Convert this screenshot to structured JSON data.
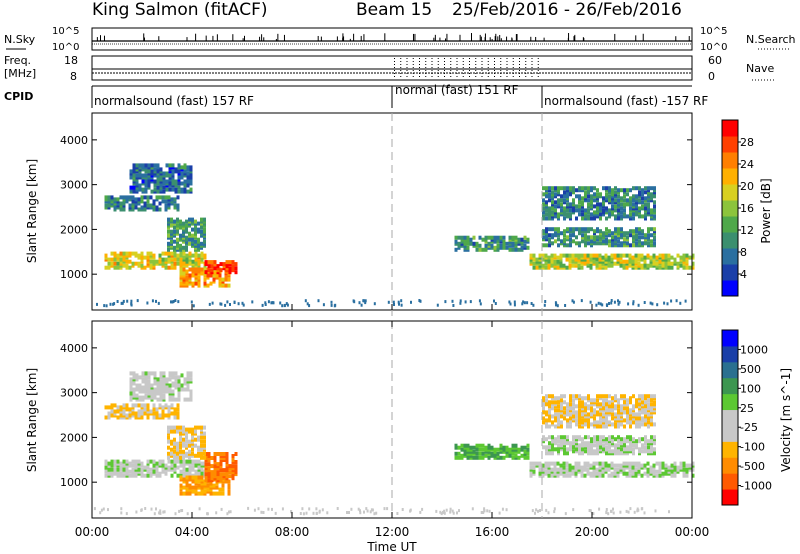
{
  "header": {
    "station": "King Salmon (fitACF)",
    "beam": "Beam 15",
    "dates": "25/Feb/2016 - 26/Feb/2016"
  },
  "strip_labels": {
    "nsky": "N.Sky",
    "nsky_scale_top": "10^5",
    "nsky_scale_bottom": "10^0",
    "freq": "Freq.",
    "freq_unit": "[MHz]",
    "freq_top": "18",
    "freq_bottom": "8",
    "cpid": "CPID",
    "nsearch": "N.Search",
    "nsearch_scale_top": "10^5",
    "nsearch_scale_bottom": "10^0",
    "nave": "Nave",
    "nave_top": "60",
    "nave_bottom": "0"
  },
  "cpid_segments": [
    {
      "label": "normalsound (fast) 157 RF",
      "start_hour": 0
    },
    {
      "label": "normal (fast) 151 RF",
      "start_hour": 12
    },
    {
      "label": "normalsound (fast) -157 RF",
      "start_hour": 18
    }
  ],
  "axes": {
    "ylabel": "Slant Range [km]",
    "xlabel": "Time UT",
    "y_ticks": [
      "1000",
      "2000",
      "3000",
      "4000"
    ],
    "x_ticks": [
      "00:00",
      "04:00",
      "08:00",
      "12:00",
      "16:00",
      "20:00",
      "00:00"
    ]
  },
  "colors": {
    "power": [
      "#0000ff",
      "#1a3fa8",
      "#2a6fa0",
      "#3b8f6f",
      "#4fa84a",
      "#8cc43c",
      "#d8d020",
      "#ffb000",
      "#ff7f00",
      "#ff4000",
      "#ff0000"
    ],
    "velocity": [
      "#ff0000",
      "#ff5a00",
      "#ff8c00",
      "#ffb400",
      "#c8c8c8",
      "#c8c8c8",
      "#5cc832",
      "#3c9650",
      "#2a7090",
      "#1a3fa8",
      "#0000ff"
    ]
  },
  "chart_data": [
    {
      "type": "heatmap",
      "panel": "power",
      "ylabel": "Slant Range [km]",
      "colorbar_label": "Power [dB]",
      "colorbar_ticks": [
        "4",
        "8",
        "12",
        "16",
        "20",
        "24",
        "28"
      ],
      "colorbar_range": [
        0,
        30
      ],
      "x_range_hours": [
        0,
        24
      ],
      "ylim": [
        200,
        4600
      ],
      "regions": [
        {
          "t0": 0.5,
          "t1": 4.5,
          "r0": 1100,
          "r1": 1450,
          "v": 18
        },
        {
          "t0": 0.5,
          "t1": 3.5,
          "r0": 2400,
          "r1": 2700,
          "v": 7
        },
        {
          "t0": 1.5,
          "t1": 4.0,
          "r0": 2800,
          "r1": 3400,
          "v": 6
        },
        {
          "t0": 3.5,
          "t1": 5.5,
          "r0": 700,
          "r1": 1100,
          "v": 22
        },
        {
          "t0": 4.5,
          "t1": 5.8,
          "r0": 1000,
          "r1": 1250,
          "v": 28
        },
        {
          "t0": 3.0,
          "t1": 4.5,
          "r0": 1500,
          "r1": 2200,
          "v": 10
        },
        {
          "t0": 14.5,
          "t1": 17.5,
          "r0": 1500,
          "r1": 1800,
          "v": 9
        },
        {
          "t0": 17.5,
          "t1": 24.0,
          "r0": 1100,
          "r1": 1400,
          "v": 16
        },
        {
          "t0": 18.0,
          "t1": 22.5,
          "r0": 1600,
          "r1": 2000,
          "v": 9
        },
        {
          "t0": 18.0,
          "t1": 22.5,
          "r0": 2200,
          "r1": 2900,
          "v": 8
        }
      ]
    },
    {
      "type": "heatmap",
      "panel": "velocity",
      "ylabel": "Slant Range [km]",
      "colorbar_label": "Velocity [m s^-1]",
      "colorbar_ticks": [
        "1000",
        "500",
        "100",
        "25",
        "-25",
        "-100",
        "-500",
        "-1000"
      ],
      "x_range_hours": [
        0,
        24
      ],
      "ylim": [
        200,
        4600
      ],
      "regions": [
        {
          "t0": 0.5,
          "t1": 4.5,
          "r0": 1100,
          "r1": 1450,
          "v": 0
        },
        {
          "t0": 0.5,
          "t1": 3.5,
          "r0": 2400,
          "r1": 2700,
          "v": -100
        },
        {
          "t0": 1.5,
          "t1": 4.0,
          "r0": 2800,
          "r1": 3400,
          "v": -25
        },
        {
          "t0": 3.5,
          "t1": 5.5,
          "r0": 700,
          "r1": 1100,
          "v": -300
        },
        {
          "t0": 4.5,
          "t1": 5.8,
          "r0": 1000,
          "r1": 1600,
          "v": -500
        },
        {
          "t0": 3.0,
          "t1": 4.5,
          "r0": 1500,
          "r1": 2200,
          "v": -100
        },
        {
          "t0": 14.5,
          "t1": 17.5,
          "r0": 1500,
          "r1": 1800,
          "v": 100
        },
        {
          "t0": 17.5,
          "t1": 24.0,
          "r0": 1100,
          "r1": 1400,
          "v": 0
        },
        {
          "t0": 18.0,
          "t1": 22.5,
          "r0": 1600,
          "r1": 2000,
          "v": 0
        },
        {
          "t0": 18.0,
          "t1": 22.5,
          "r0": 2200,
          "r1": 2900,
          "v": -100
        }
      ]
    }
  ]
}
